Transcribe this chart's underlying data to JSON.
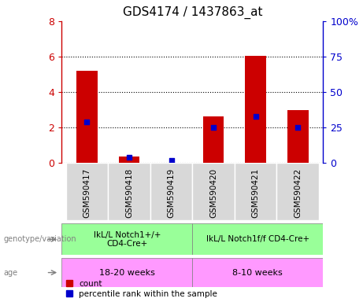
{
  "title": "GDS4174 / 1437863_at",
  "samples": [
    "GSM590417",
    "GSM590418",
    "GSM590419",
    "GSM590420",
    "GSM590421",
    "GSM590422"
  ],
  "count_values": [
    5.2,
    0.35,
    0.0,
    2.65,
    6.05,
    3.0
  ],
  "percentile_values": [
    29,
    4,
    2,
    25,
    33,
    25
  ],
  "ylim_left": [
    0,
    8
  ],
  "ylim_right": [
    0,
    100
  ],
  "yticks_left": [
    0,
    2,
    4,
    6,
    8
  ],
  "yticks_right": [
    0,
    25,
    50,
    75,
    100
  ],
  "yticklabels_left": [
    "0",
    "2",
    "4",
    "6",
    "8"
  ],
  "yticklabels_right": [
    "0",
    "25",
    "50",
    "75",
    "100%"
  ],
  "bar_color": "#cc0000",
  "dot_color": "#0000cc",
  "sample_bg_color": "#d8d8d8",
  "genotype_group1": "IkL/L Notch1+/+\nCD4-Cre+",
  "genotype_group2": "IkL/L Notch1f/f CD4-Cre+",
  "age_group1": "18-20 weeks",
  "age_group2": "8-10 weeks",
  "genotype_color": "#99ff99",
  "age_color": "#ff99ff",
  "legend_count_label": "count",
  "legend_pct_label": "percentile rank within the sample",
  "bar_width": 0.5
}
